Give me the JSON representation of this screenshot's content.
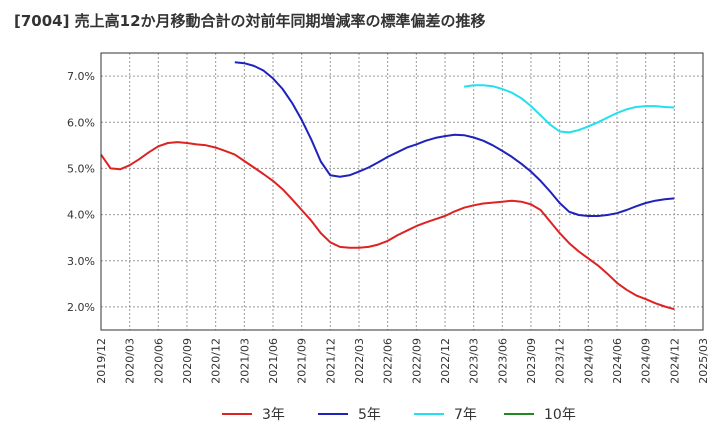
{
  "title": "[7004]  売上高12か月移動合計の対前年同期増減率の標準偏差の推移",
  "chart_data": {
    "type": "line",
    "title": "[7004]  売上高12か月移動合計の対前年同期増減率の標準偏差の推移",
    "xlabel": "",
    "ylabel": "",
    "x_tick_labels": [
      "2019/12",
      "2020/03",
      "2020/06",
      "2020/09",
      "2020/12",
      "2021/03",
      "2021/06",
      "2021/09",
      "2021/12",
      "2022/03",
      "2022/06",
      "2022/09",
      "2022/12",
      "2023/03",
      "2023/06",
      "2023/09",
      "2023/12",
      "2024/03",
      "2024/06",
      "2024/09",
      "2024/12",
      "2025/03"
    ],
    "y_tick_labels": [
      "2.0%",
      "3.0%",
      "4.0%",
      "5.0%",
      "6.0%",
      "7.0%"
    ],
    "ylim": [
      1.5,
      7.5
    ],
    "grid": true,
    "legend_position": "bottom",
    "colors": {
      "3年": "#dd2222",
      "5年": "#1f22bb",
      "7年": "#22e0ee",
      "10年": "#228822"
    },
    "series": [
      {
        "name": "3年",
        "color": "#dd2222",
        "points": [
          [
            "2019/12",
            5.3
          ],
          [
            "2020/01",
            5.0
          ],
          [
            "2020/02",
            4.98
          ],
          [
            "2020/03",
            5.07
          ],
          [
            "2020/04",
            5.2
          ],
          [
            "2020/05",
            5.35
          ],
          [
            "2020/06",
            5.48
          ],
          [
            "2020/07",
            5.55
          ],
          [
            "2020/08",
            5.57
          ],
          [
            "2020/09",
            5.55
          ],
          [
            "2020/10",
            5.52
          ],
          [
            "2020/11",
            5.5
          ],
          [
            "2020/12",
            5.45
          ],
          [
            "2021/01",
            5.38
          ],
          [
            "2021/02",
            5.3
          ],
          [
            "2021/03",
            5.16
          ],
          [
            "2021/04",
            5.02
          ],
          [
            "2021/05",
            4.88
          ],
          [
            "2021/06",
            4.73
          ],
          [
            "2021/07",
            4.55
          ],
          [
            "2021/08",
            4.33
          ],
          [
            "2021/09",
            4.1
          ],
          [
            "2021/10",
            3.87
          ],
          [
            "2021/11",
            3.6
          ],
          [
            "2021/12",
            3.4
          ],
          [
            "2022/01",
            3.3
          ],
          [
            "2022/02",
            3.28
          ],
          [
            "2022/03",
            3.28
          ],
          [
            "2022/04",
            3.3
          ],
          [
            "2022/05",
            3.35
          ],
          [
            "2022/06",
            3.43
          ],
          [
            "2022/07",
            3.55
          ],
          [
            "2022/08",
            3.65
          ],
          [
            "2022/09",
            3.75
          ],
          [
            "2022/10",
            3.83
          ],
          [
            "2022/11",
            3.9
          ],
          [
            "2022/12",
            3.97
          ],
          [
            "2023/01",
            4.07
          ],
          [
            "2023/02",
            4.15
          ],
          [
            "2023/03",
            4.2
          ],
          [
            "2023/04",
            4.24
          ],
          [
            "2023/05",
            4.26
          ],
          [
            "2023/06",
            4.28
          ],
          [
            "2023/07",
            4.3
          ],
          [
            "2023/08",
            4.28
          ],
          [
            "2023/09",
            4.22
          ],
          [
            "2023/10",
            4.1
          ],
          [
            "2023/11",
            3.85
          ],
          [
            "2023/12",
            3.6
          ],
          [
            "2024/01",
            3.38
          ],
          [
            "2024/02",
            3.2
          ],
          [
            "2024/03",
            3.05
          ],
          [
            "2024/04",
            2.9
          ],
          [
            "2024/05",
            2.72
          ],
          [
            "2024/06",
            2.52
          ],
          [
            "2024/07",
            2.37
          ],
          [
            "2024/08",
            2.25
          ],
          [
            "2024/09",
            2.17
          ],
          [
            "2024/10",
            2.08
          ],
          [
            "2024/11",
            2.01
          ],
          [
            "2024/12",
            1.95
          ]
        ]
      },
      {
        "name": "5年",
        "color": "#1f22bb",
        "points": [
          [
            "2021/02",
            7.3
          ],
          [
            "2021/03",
            7.28
          ],
          [
            "2021/04",
            7.22
          ],
          [
            "2021/05",
            7.12
          ],
          [
            "2021/06",
            6.95
          ],
          [
            "2021/07",
            6.72
          ],
          [
            "2021/08",
            6.42
          ],
          [
            "2021/09",
            6.05
          ],
          [
            "2021/10",
            5.63
          ],
          [
            "2021/11",
            5.15
          ],
          [
            "2021/12",
            4.85
          ],
          [
            "2022/01",
            4.82
          ],
          [
            "2022/02",
            4.85
          ],
          [
            "2022/03",
            4.93
          ],
          [
            "2022/04",
            5.02
          ],
          [
            "2022/05",
            5.13
          ],
          [
            "2022/06",
            5.25
          ],
          [
            "2022/07",
            5.35
          ],
          [
            "2022/08",
            5.45
          ],
          [
            "2022/09",
            5.52
          ],
          [
            "2022/10",
            5.6
          ],
          [
            "2022/11",
            5.66
          ],
          [
            "2022/12",
            5.7
          ],
          [
            "2023/01",
            5.73
          ],
          [
            "2023/02",
            5.72
          ],
          [
            "2023/03",
            5.67
          ],
          [
            "2023/04",
            5.6
          ],
          [
            "2023/05",
            5.5
          ],
          [
            "2023/06",
            5.38
          ],
          [
            "2023/07",
            5.25
          ],
          [
            "2023/08",
            5.1
          ],
          [
            "2023/09",
            4.93
          ],
          [
            "2023/10",
            4.73
          ],
          [
            "2023/11",
            4.5
          ],
          [
            "2023/12",
            4.25
          ],
          [
            "2024/01",
            4.06
          ],
          [
            "2024/02",
            3.99
          ],
          [
            "2024/03",
            3.97
          ],
          [
            "2024/04",
            3.97
          ],
          [
            "2024/05",
            3.99
          ],
          [
            "2024/06",
            4.03
          ],
          [
            "2024/07",
            4.1
          ],
          [
            "2024/08",
            4.18
          ],
          [
            "2024/09",
            4.25
          ],
          [
            "2024/10",
            4.3
          ],
          [
            "2024/11",
            4.33
          ],
          [
            "2024/12",
            4.35
          ]
        ]
      },
      {
        "name": "7年",
        "color": "#22e0ee",
        "points": [
          [
            "2023/02",
            6.77
          ],
          [
            "2023/03",
            6.8
          ],
          [
            "2023/04",
            6.8
          ],
          [
            "2023/05",
            6.78
          ],
          [
            "2023/06",
            6.72
          ],
          [
            "2023/07",
            6.64
          ],
          [
            "2023/08",
            6.52
          ],
          [
            "2023/09",
            6.35
          ],
          [
            "2023/10",
            6.15
          ],
          [
            "2023/11",
            5.95
          ],
          [
            "2023/12",
            5.8
          ],
          [
            "2024/01",
            5.78
          ],
          [
            "2024/02",
            5.83
          ],
          [
            "2024/03",
            5.91
          ],
          [
            "2024/04",
            6.0
          ],
          [
            "2024/05",
            6.1
          ],
          [
            "2024/06",
            6.2
          ],
          [
            "2024/07",
            6.28
          ],
          [
            "2024/08",
            6.33
          ],
          [
            "2024/09",
            6.35
          ],
          [
            "2024/10",
            6.35
          ],
          [
            "2024/11",
            6.33
          ],
          [
            "2024/12",
            6.32
          ]
        ]
      },
      {
        "name": "10年",
        "color": "#228822",
        "points": []
      }
    ]
  }
}
